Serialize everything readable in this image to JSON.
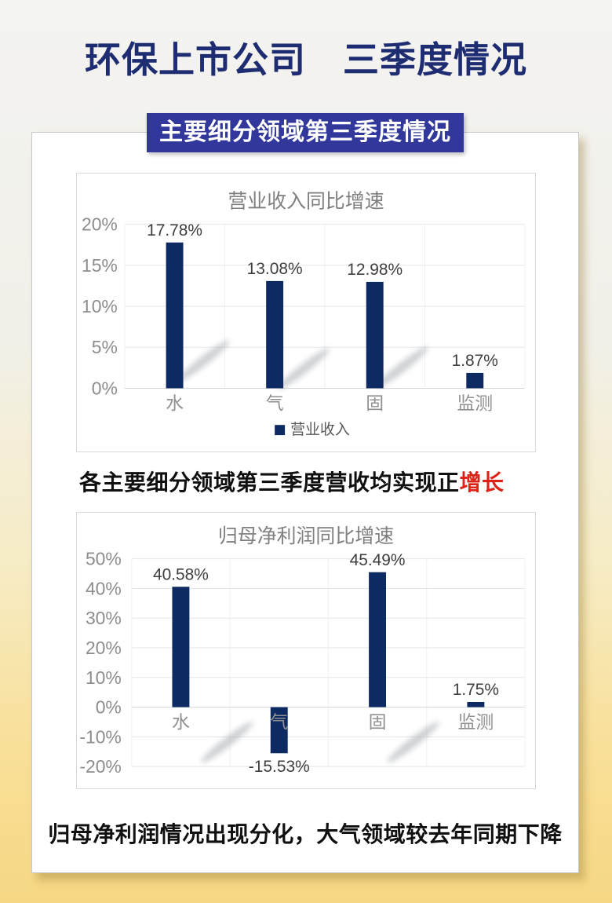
{
  "header": {
    "title": "环保上市公司　三季度情况",
    "banner": "主要细分领域第三季度情况"
  },
  "headlines": {
    "revenue_prefix": "各主要细分领域第三季度营收均实现正",
    "revenue_highlight": "增长",
    "profit": "归母净利润情况出现分化，大气领域较去年同期下降"
  },
  "colors": {
    "bar_navy": "#0e2a63",
    "banner_blue": "#32389b",
    "title_blue": "#1e2c72",
    "highlight_red": "#dd2317",
    "page_top": "#f3f3f1",
    "page_bottom": "#f6d884"
  },
  "chart_data": [
    {
      "type": "bar",
      "title": "营业收入同比增速",
      "categories": [
        "水",
        "气",
        "固",
        "监测"
      ],
      "values": [
        17.78,
        13.08,
        12.98,
        1.87
      ],
      "data_labels": [
        "17.78%",
        "13.08%",
        "12.98%",
        "1.87%"
      ],
      "ylim": [
        0,
        20
      ],
      "ytick_step": 5,
      "ytick_labels": [
        "0%",
        "5%",
        "10%",
        "15%",
        "20%"
      ],
      "grid": true,
      "legend": [
        "营业收入"
      ],
      "legend_position": "bottom",
      "bar_color": "#0e2a63"
    },
    {
      "type": "bar",
      "title": "归母净利润同比增速",
      "categories": [
        "水",
        "气",
        "固",
        "监测"
      ],
      "values": [
        40.58,
        -15.53,
        45.49,
        1.75
      ],
      "data_labels": [
        "40.58%",
        "-15.53%",
        "45.49%",
        "1.75%"
      ],
      "ylim": [
        -20,
        50
      ],
      "ytick_step": 10,
      "ytick_labels": [
        "-20%",
        "-10%",
        "0%",
        "10%",
        "20%",
        "30%",
        "40%",
        "50%"
      ],
      "grid": true,
      "legend": [],
      "legend_position": "none",
      "bar_color": "#0e2a63"
    }
  ]
}
